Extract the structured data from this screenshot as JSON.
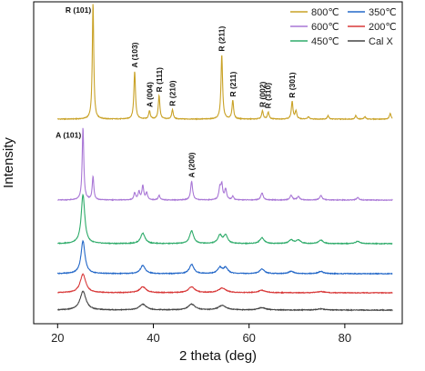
{
  "chart_data": {
    "type": "line",
    "xlabel": "2 theta (deg)",
    "ylabel": "Intensity",
    "xlim": [
      15,
      92
    ],
    "xticks": [
      20,
      40,
      60,
      80
    ],
    "legend_position": "top-right",
    "grid": false,
    "series": [
      {
        "name": "800℃",
        "color": "#c9a227",
        "baseline": 0.0,
        "peaks": [
          {
            "x": 27.4,
            "h": 1.0,
            "w": 0.18
          },
          {
            "x": 36.1,
            "h": 0.41,
            "w": 0.2
          },
          {
            "x": 39.2,
            "h": 0.07,
            "w": 0.2
          },
          {
            "x": 41.2,
            "h": 0.2,
            "w": 0.2
          },
          {
            "x": 44.0,
            "h": 0.08,
            "w": 0.2
          },
          {
            "x": 54.3,
            "h": 0.55,
            "w": 0.2
          },
          {
            "x": 56.6,
            "h": 0.16,
            "w": 0.2
          },
          {
            "x": 62.8,
            "h": 0.07,
            "w": 0.2
          },
          {
            "x": 64.0,
            "h": 0.06,
            "w": 0.2
          },
          {
            "x": 69.0,
            "h": 0.15,
            "w": 0.2
          },
          {
            "x": 69.8,
            "h": 0.07,
            "w": 0.2
          },
          {
            "x": 72.4,
            "h": 0.02,
            "w": 0.2
          },
          {
            "x": 76.5,
            "h": 0.03,
            "w": 0.2
          },
          {
            "x": 82.3,
            "h": 0.03,
            "w": 0.2
          },
          {
            "x": 84.2,
            "h": 0.02,
            "w": 0.2
          },
          {
            "x": 89.5,
            "h": 0.05,
            "w": 0.2
          }
        ]
      },
      {
        "name": "600℃",
        "color": "#a977d6",
        "baseline": 0.0,
        "peaks": [
          {
            "x": 25.3,
            "h": 0.62,
            "w": 0.2
          },
          {
            "x": 27.4,
            "h": 0.2,
            "w": 0.2
          },
          {
            "x": 36.1,
            "h": 0.06,
            "w": 0.22
          },
          {
            "x": 37.0,
            "h": 0.07,
            "w": 0.22
          },
          {
            "x": 37.8,
            "h": 0.12,
            "w": 0.22
          },
          {
            "x": 38.6,
            "h": 0.06,
            "w": 0.22
          },
          {
            "x": 41.2,
            "h": 0.04,
            "w": 0.22
          },
          {
            "x": 48.0,
            "h": 0.16,
            "w": 0.25
          },
          {
            "x": 53.9,
            "h": 0.1,
            "w": 0.25
          },
          {
            "x": 54.3,
            "h": 0.12,
            "w": 0.22
          },
          {
            "x": 55.1,
            "h": 0.09,
            "w": 0.25
          },
          {
            "x": 56.6,
            "h": 0.03,
            "w": 0.22
          },
          {
            "x": 62.7,
            "h": 0.06,
            "w": 0.3
          },
          {
            "x": 68.8,
            "h": 0.04,
            "w": 0.3
          },
          {
            "x": 70.3,
            "h": 0.03,
            "w": 0.3
          },
          {
            "x": 75.0,
            "h": 0.04,
            "w": 0.3
          },
          {
            "x": 82.7,
            "h": 0.02,
            "w": 0.3
          }
        ]
      },
      {
        "name": "450℃",
        "color": "#2eab6a",
        "baseline": 0.0,
        "peaks": [
          {
            "x": 25.3,
            "h": 0.42,
            "w": 0.45
          },
          {
            "x": 37.8,
            "h": 0.09,
            "w": 0.55
          },
          {
            "x": 48.0,
            "h": 0.11,
            "w": 0.5
          },
          {
            "x": 53.9,
            "h": 0.07,
            "w": 0.5
          },
          {
            "x": 55.1,
            "h": 0.07,
            "w": 0.5
          },
          {
            "x": 62.7,
            "h": 0.05,
            "w": 0.55
          },
          {
            "x": 68.8,
            "h": 0.03,
            "w": 0.55
          },
          {
            "x": 70.3,
            "h": 0.03,
            "w": 0.55
          },
          {
            "x": 75.0,
            "h": 0.03,
            "w": 0.55
          },
          {
            "x": 82.7,
            "h": 0.02,
            "w": 0.55
          }
        ]
      },
      {
        "name": "350℃",
        "color": "#2468c8",
        "baseline": 0.0,
        "peaks": [
          {
            "x": 25.3,
            "h": 0.28,
            "w": 0.5
          },
          {
            "x": 37.8,
            "h": 0.07,
            "w": 0.6
          },
          {
            "x": 48.0,
            "h": 0.08,
            "w": 0.55
          },
          {
            "x": 53.9,
            "h": 0.05,
            "w": 0.55
          },
          {
            "x": 55.1,
            "h": 0.05,
            "w": 0.55
          },
          {
            "x": 62.7,
            "h": 0.04,
            "w": 0.6
          },
          {
            "x": 68.8,
            "h": 0.02,
            "w": 0.6
          },
          {
            "x": 75.0,
            "h": 0.02,
            "w": 0.6
          }
        ]
      },
      {
        "name": "200℃",
        "color": "#d83838",
        "baseline": 0.0,
        "peaks": [
          {
            "x": 25.3,
            "h": 0.16,
            "w": 0.7
          },
          {
            "x": 37.8,
            "h": 0.05,
            "w": 0.8
          },
          {
            "x": 48.0,
            "h": 0.05,
            "w": 0.8
          },
          {
            "x": 54.4,
            "h": 0.04,
            "w": 0.9
          },
          {
            "x": 62.7,
            "h": 0.02,
            "w": 0.9
          },
          {
            "x": 75.0,
            "h": 0.01,
            "w": 0.9
          }
        ]
      },
      {
        "name": "Cal X",
        "color": "#444444",
        "baseline": 0.0,
        "peaks": [
          {
            "x": 25.3,
            "h": 0.16,
            "w": 0.75
          },
          {
            "x": 37.8,
            "h": 0.05,
            "w": 0.85
          },
          {
            "x": 48.0,
            "h": 0.05,
            "w": 0.85
          },
          {
            "x": 54.4,
            "h": 0.04,
            "w": 0.95
          },
          {
            "x": 62.7,
            "h": 0.02,
            "w": 0.95
          },
          {
            "x": 75.0,
            "h": 0.01,
            "w": 0.95
          }
        ]
      }
    ],
    "annotations": [
      {
        "text": "R (101)",
        "series": "800℃",
        "x": 27.4,
        "orientation": "horizontal"
      },
      {
        "text": "A (103)",
        "series": "800℃",
        "x": 36.1,
        "orientation": "vertical"
      },
      {
        "text": "A (004)",
        "series": "800℃",
        "x": 39.2,
        "orientation": "vertical"
      },
      {
        "text": "R (111)",
        "series": "800℃",
        "x": 41.2,
        "orientation": "vertical"
      },
      {
        "text": "R (210)",
        "series": "800℃",
        "x": 44.0,
        "orientation": "vertical"
      },
      {
        "text": "R (211)",
        "series": "800℃",
        "x": 54.3,
        "orientation": "vertical"
      },
      {
        "text": "R (211)",
        "series": "800℃",
        "x": 56.6,
        "orientation": "vertical"
      },
      {
        "text": "R (002)",
        "series": "800℃",
        "x": 62.8,
        "orientation": "vertical"
      },
      {
        "text": "R (310)",
        "series": "800℃",
        "x": 64.0,
        "orientation": "vertical"
      },
      {
        "text": "R (301)",
        "series": "800℃",
        "x": 69.0,
        "orientation": "vertical"
      },
      {
        "text": "A (101)",
        "series": "600℃",
        "x": 25.3,
        "orientation": "horizontal"
      },
      {
        "text": "A (200)",
        "series": "600℃",
        "x": 48.0,
        "orientation": "vertical"
      }
    ]
  }
}
